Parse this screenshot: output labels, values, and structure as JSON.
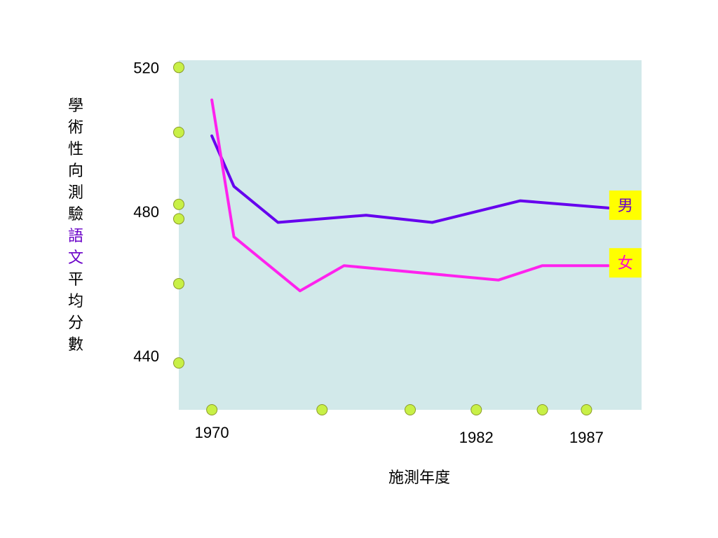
{
  "chart_data": {
    "type": "line",
    "title": "",
    "xlabel": "施測年度",
    "ylabel": [
      {
        "char": "學",
        "color": "#000000"
      },
      {
        "char": "術",
        "color": "#000000"
      },
      {
        "char": "性",
        "color": "#000000"
      },
      {
        "char": "向",
        "color": "#000000"
      },
      {
        "char": "測",
        "color": "#000000"
      },
      {
        "char": "驗",
        "color": "#000000"
      },
      {
        "char": "語",
        "color": "#6a00c8"
      },
      {
        "char": "文",
        "color": "#6a00c8"
      },
      {
        "char": "平",
        "color": "#000000"
      },
      {
        "char": "均",
        "color": "#000000"
      },
      {
        "char": "分",
        "color": "#000000"
      },
      {
        "char": "數",
        "color": "#000000"
      }
    ],
    "ylim": [
      425,
      522
    ],
    "xlim": [
      1968.5,
      1989.5
    ],
    "y_ticks": [
      {
        "value": 520,
        "label": "520"
      },
      {
        "value": 480,
        "label": "480"
      },
      {
        "value": 440,
        "label": "440"
      }
    ],
    "y_markers": [
      520,
      502,
      482,
      478,
      460,
      438
    ],
    "x_ticks": [
      {
        "value": 1970,
        "label": "1970"
      },
      {
        "value": 1982,
        "label": "1982"
      },
      {
        "value": 1987,
        "label": "1987"
      }
    ],
    "x_markers": [
      1970,
      1975,
      1979,
      1982,
      1985,
      1987
    ],
    "plot_bg": "#d2e9ea",
    "marker_color": "#c8f046",
    "series": [
      {
        "name": "男",
        "color": "#6600ee",
        "label_bg": "#ffff00",
        "label_color": "#6a00c8",
        "points": [
          [
            1970,
            501
          ],
          [
            1971,
            487
          ],
          [
            1973,
            477
          ],
          [
            1977,
            479
          ],
          [
            1980,
            477
          ],
          [
            1984,
            483
          ],
          [
            1988,
            481
          ]
        ]
      },
      {
        "name": "女",
        "color": "#ff22ee",
        "label_bg": "#ffff00",
        "label_color": "#ff00cc",
        "points": [
          [
            1970,
            511
          ],
          [
            1971,
            473
          ],
          [
            1974,
            458
          ],
          [
            1976,
            465
          ],
          [
            1983,
            461
          ],
          [
            1985,
            465
          ],
          [
            1988,
            465
          ]
        ]
      }
    ]
  }
}
